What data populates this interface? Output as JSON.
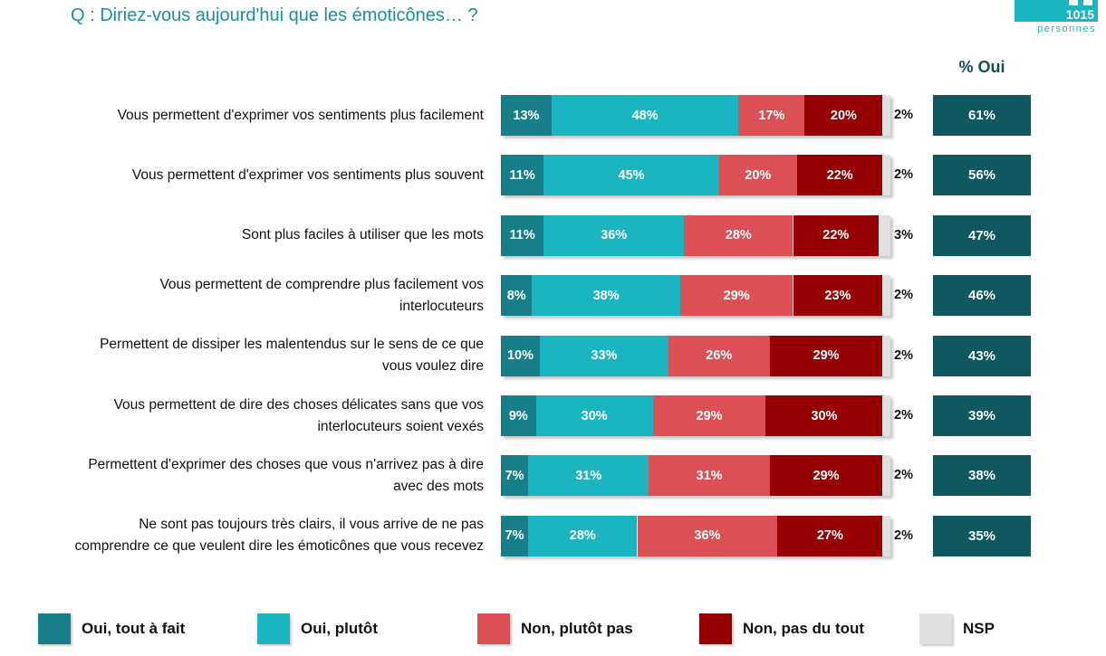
{
  "header": {
    "question": "Q :  Diriez-vous aujourd'hui que les émoticônes… ?",
    "sample_count": "1015",
    "sample_label": "personnes",
    "oui_header": "% Oui"
  },
  "colors": {
    "oui_tout_a_fait": "#177f89",
    "oui_plutot": "#1ab5c1",
    "non_plutot_pas": "#dc4f55",
    "non_pas_du_tout": "#970003",
    "nsp": "#e0e0e0",
    "oui_total": "#10585f",
    "question": "#1a8fa0"
  },
  "chart_data": {
    "type": "bar",
    "orientation": "horizontal-stacked-100",
    "series_names": [
      "Oui, tout à fait",
      "Oui, plutôt",
      "Non, plutôt pas",
      "Non, pas du tout",
      "NSP"
    ],
    "legend_position": "bottom",
    "rows": [
      {
        "label_lines": [
          "Vous permettent d'exprimer vos sentiments plus facilement"
        ],
        "values": [
          13,
          48,
          17,
          20,
          2
        ],
        "oui": 61
      },
      {
        "label_lines": [
          "Vous permettent d'exprimer vos sentiments plus souvent"
        ],
        "values": [
          11,
          45,
          20,
          22,
          2
        ],
        "oui": 56
      },
      {
        "label_lines": [
          "Sont plus faciles à utiliser que les mots"
        ],
        "values": [
          11,
          36,
          28,
          22,
          3
        ],
        "oui": 47
      },
      {
        "label_lines": [
          "Vous permettent de comprendre plus facilement vos",
          "interlocuteurs"
        ],
        "values": [
          8,
          38,
          29,
          23,
          2
        ],
        "oui": 46
      },
      {
        "label_lines": [
          "Permettent de dissiper les malentendus sur le sens de ce que",
          "vous voulez dire"
        ],
        "values": [
          10,
          33,
          26,
          29,
          2
        ],
        "oui": 43
      },
      {
        "label_lines": [
          "Vous permettent de dire des choses délicates sans que vos",
          "interlocuteurs soient vexés"
        ],
        "values": [
          9,
          30,
          29,
          30,
          2
        ],
        "oui": 39
      },
      {
        "label_lines": [
          "Permettent d'exprimer des choses que vous n'arrivez pas à dire",
          "avec des mots"
        ],
        "values": [
          7,
          31,
          31,
          29,
          2
        ],
        "oui": 38
      },
      {
        "label_lines": [
          "Ne sont pas toujours très clairs, il vous arrive de ne pas",
          "comprendre ce que veulent dire les émoticônes que vous recevez"
        ],
        "values": [
          7,
          28,
          36,
          27,
          2
        ],
        "oui": 35
      }
    ]
  }
}
